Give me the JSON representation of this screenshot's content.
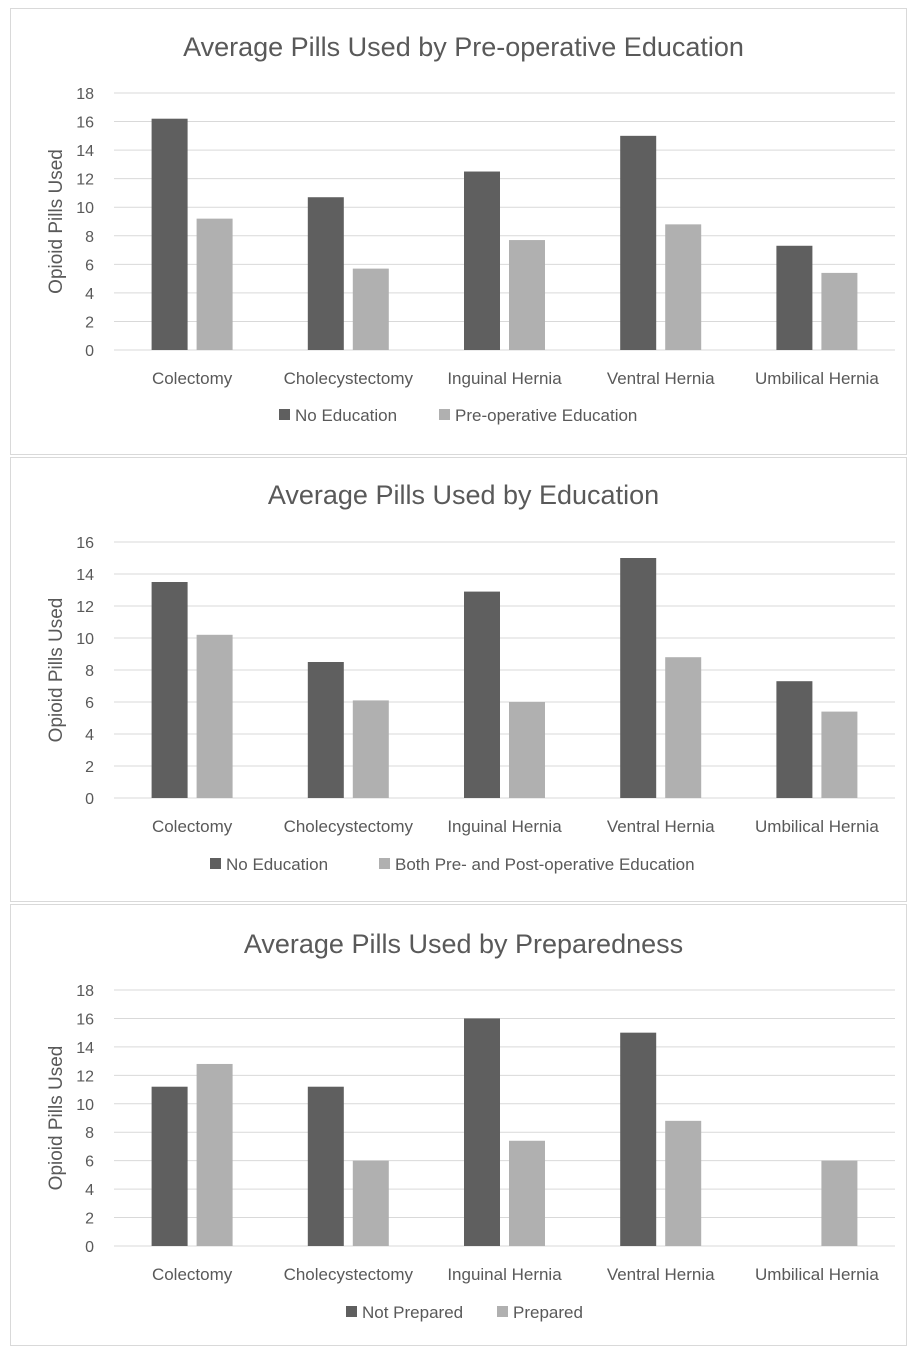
{
  "chart_data": [
    {
      "type": "bar",
      "title": "Average Pills Used by Pre-operative Education",
      "xlabel": "",
      "ylabel": "Opioid Pills Used",
      "ylim": [
        0,
        18
      ],
      "yticks": [
        0,
        2,
        4,
        6,
        8,
        10,
        12,
        14,
        16,
        18
      ],
      "grid": true,
      "legend_position": "bottom",
      "categories": [
        "Colectomy",
        "Cholecystectomy",
        "Inguinal Hernia",
        "Ventral Hernia",
        "Umbilical Hernia"
      ],
      "series": [
        {
          "name": "No Education",
          "color": "#5f5f5f",
          "values": [
            16.2,
            10.7,
            12.5,
            15.0,
            7.3
          ]
        },
        {
          "name": "Pre-operative Education",
          "color": "#b0b0b0",
          "values": [
            9.2,
            5.7,
            7.7,
            8.8,
            5.4
          ]
        }
      ]
    },
    {
      "type": "bar",
      "title": "Average Pills Used by Education",
      "xlabel": "",
      "ylabel": "Opioid Pills Used",
      "ylim": [
        0,
        16
      ],
      "yticks": [
        0,
        2,
        4,
        6,
        8,
        10,
        12,
        14,
        16
      ],
      "grid": true,
      "legend_position": "bottom",
      "categories": [
        "Colectomy",
        "Cholecystectomy",
        "Inguinal Hernia",
        "Ventral Hernia",
        "Umbilical Hernia"
      ],
      "series": [
        {
          "name": "No Education",
          "color": "#5f5f5f",
          "values": [
            13.5,
            8.5,
            12.9,
            15.0,
            7.3
          ]
        },
        {
          "name": "Both Pre- and Post-operative Education",
          "color": "#b0b0b0",
          "values": [
            10.2,
            6.1,
            6.0,
            8.8,
            5.4
          ]
        }
      ]
    },
    {
      "type": "bar",
      "title": "Average Pills Used by Preparedness",
      "xlabel": "",
      "ylabel": "Opioid Pills Used",
      "ylim": [
        0,
        18
      ],
      "yticks": [
        0,
        2,
        4,
        6,
        8,
        10,
        12,
        14,
        16,
        18
      ],
      "grid": true,
      "legend_position": "bottom",
      "categories": [
        "Colectomy",
        "Cholecystectomy",
        "Inguinal Hernia",
        "Ventral Hernia",
        "Umbilical Hernia"
      ],
      "series": [
        {
          "name": "Not Prepared",
          "color": "#5f5f5f",
          "values": [
            11.2,
            11.2,
            16.0,
            15.0,
            0
          ]
        },
        {
          "name": "Prepared",
          "color": "#b0b0b0",
          "values": [
            12.8,
            6.0,
            7.4,
            8.8,
            6.0
          ]
        }
      ]
    }
  ]
}
